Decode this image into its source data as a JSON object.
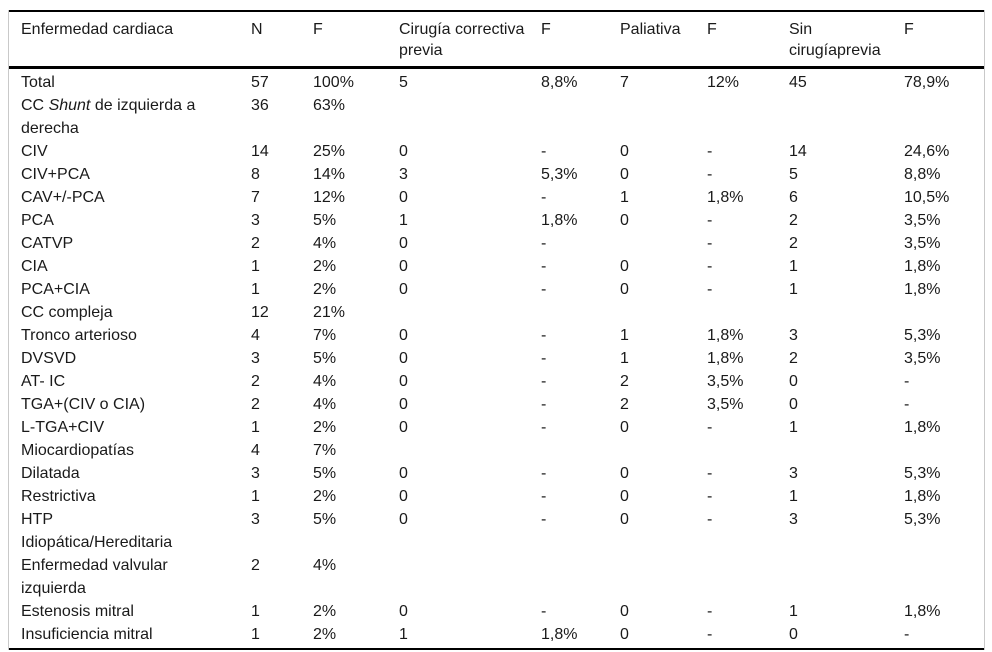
{
  "chart_data": {
    "type": "table",
    "columns": [
      "Enfermedad cardiaca",
      "N",
      "F",
      "Cirugía correctiva previa",
      "F",
      "Paliativa",
      "F",
      "Sin cirugíaprevia",
      "F"
    ],
    "rows": [
      {
        "label_lines": [
          "Total"
        ],
        "cells": [
          "57",
          "100%",
          "5",
          "8,8%",
          "7",
          "12%",
          "45",
          "78,9%"
        ]
      },
      {
        "label_lines": [
          "CC Shunt de izquierda a",
          "derecha"
        ],
        "italic_word": "Shunt",
        "cells": [
          "36",
          "63%",
          "",
          "",
          "",
          "",
          "",
          ""
        ]
      },
      {
        "label_lines": [
          "CIV"
        ],
        "cells": [
          "14",
          "25%",
          "0",
          "-",
          "0",
          "-",
          "14",
          "24,6%"
        ]
      },
      {
        "label_lines": [
          "CIV+PCA"
        ],
        "cells": [
          "8",
          "14%",
          "3",
          "5,3%",
          "0",
          "-",
          "5",
          "8,8%"
        ]
      },
      {
        "label_lines": [
          "CAV+/-PCA"
        ],
        "cells": [
          "7",
          "12%",
          "0",
          "-",
          "1",
          "1,8%",
          "6",
          "10,5%"
        ]
      },
      {
        "label_lines": [
          "PCA"
        ],
        "cells": [
          "3",
          "5%",
          "1",
          "1,8%",
          "0",
          "-",
          "2",
          "3,5%"
        ]
      },
      {
        "label_lines": [
          "CATVP"
        ],
        "cells": [
          "2",
          "4%",
          "0",
          "-",
          "",
          "-",
          "2",
          "3,5%"
        ]
      },
      {
        "label_lines": [
          "CIA"
        ],
        "cells": [
          "1",
          "2%",
          "0",
          "-",
          "0",
          "-",
          "1",
          "1,8%"
        ]
      },
      {
        "label_lines": [
          "PCA+CIA"
        ],
        "cells": [
          "1",
          "2%",
          "0",
          "-",
          "0",
          "-",
          "1",
          "1,8%"
        ]
      },
      {
        "label_lines": [
          "CC compleja"
        ],
        "cells": [
          "12",
          "21%",
          "",
          "",
          "",
          "",
          "",
          ""
        ]
      },
      {
        "label_lines": [
          "Tronco arterioso"
        ],
        "cells": [
          "4",
          "7%",
          "0",
          "-",
          "1",
          "1,8%",
          "3",
          "5,3%"
        ]
      },
      {
        "label_lines": [
          "DVSVD"
        ],
        "cells": [
          "3",
          "5%",
          "0",
          "-",
          "1",
          "1,8%",
          "2",
          "3,5%"
        ]
      },
      {
        "label_lines": [
          "AT- IC"
        ],
        "cells": [
          "2",
          "4%",
          "0",
          "-",
          "2",
          "3,5%",
          "0",
          "-"
        ]
      },
      {
        "label_lines": [
          "TGA+(CIV o CIA)"
        ],
        "cells": [
          "2",
          "4%",
          "0",
          "-",
          "2",
          "3,5%",
          "0",
          "-"
        ]
      },
      {
        "label_lines": [
          "L-TGA+CIV"
        ],
        "cells": [
          "1",
          "2%",
          "0",
          "-",
          "0",
          "-",
          "1",
          "1,8%"
        ]
      },
      {
        "label_lines": [
          "Miocardiopatías"
        ],
        "cells": [
          "4",
          "7%",
          "",
          "",
          "",
          "",
          "",
          ""
        ]
      },
      {
        "label_lines": [
          "Dilatada"
        ],
        "cells": [
          "3",
          "5%",
          "0",
          "-",
          "0",
          "-",
          "3",
          "5,3%"
        ]
      },
      {
        "label_lines": [
          "Restrictiva"
        ],
        "cells": [
          "1",
          "2%",
          "0",
          "-",
          "0",
          "-",
          "1",
          "1,8%"
        ]
      },
      {
        "label_lines": [
          "HTP",
          "Idiopática/Hereditaria"
        ],
        "cells": [
          "3",
          "5%",
          "0",
          "-",
          "0",
          "-",
          "3",
          "5,3%"
        ]
      },
      {
        "label_lines": [
          "Enfermedad valvular",
          "izquierda"
        ],
        "cells": [
          "2",
          "4%",
          "",
          "",
          "",
          "",
          "",
          ""
        ]
      },
      {
        "label_lines": [
          "Estenosis mitral"
        ],
        "cells": [
          "1",
          "2%",
          "0",
          "-",
          "0",
          "-",
          "1",
          "1,8%"
        ]
      },
      {
        "label_lines": [
          "Insuficiencia mitral"
        ],
        "cells": [
          "1",
          "2%",
          "1",
          "1,8%",
          "0",
          "-",
          "0",
          "-"
        ]
      }
    ],
    "layout": {
      "rule_color": "#000000",
      "side_rule_color": "#c9c9c9",
      "text_color": "#1a1a1a",
      "background": "#ffffff"
    }
  }
}
